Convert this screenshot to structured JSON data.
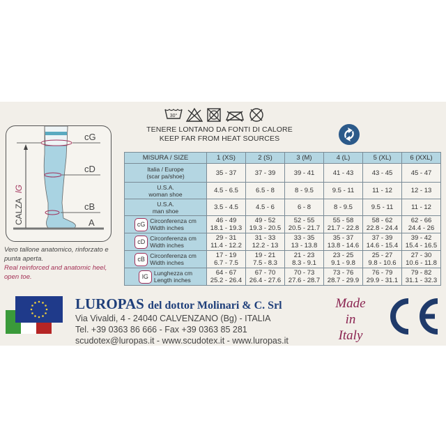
{
  "care_icons": [
    "wash-30-icon",
    "no-bleach-icon",
    "no-tumble-dry-icon",
    "no-iron-icon",
    "no-dry-clean-icon"
  ],
  "wash_temp": "30°",
  "heat_warning": {
    "it": "TENERE LONTANO DA FONTI DI CALORE",
    "en": "KEEP FAR FROM HEAT SOURCES"
  },
  "diagram": {
    "labels": [
      "cG",
      "cD",
      "cB",
      "A"
    ],
    "axis_label": "CALZA",
    "axis_symbol": "lG"
  },
  "note": {
    "it": "Vero tallone anatomico, rinforzato e punta aperta.",
    "en": "Real reinforced and anatomic heel, open toe."
  },
  "table": {
    "header": [
      "MISURA / SIZE",
      "1 (XS)",
      "2 (S)",
      "3 (M)",
      "4 (L)",
      "5 (XL)",
      "6 (XXL)"
    ],
    "rows": [
      {
        "label1": "Italia / Europe",
        "label2": "(scar pa/shoe)",
        "values": [
          "35 - 37",
          "37 - 39",
          "39 - 41",
          "41 - 43",
          "43 - 45",
          "45 - 47"
        ]
      },
      {
        "label1": "U.S.A.",
        "label2": "woman shoe",
        "values": [
          "4.5 - 6.5",
          "6.5 - 8",
          "8 - 9.5",
          "9.5 - 11",
          "11 - 12",
          "12 - 13"
        ]
      },
      {
        "label1": "U.S.A.",
        "label2": "man shoe",
        "values": [
          "3.5 - 4.5",
          "4.5 - 6",
          "6 - 8",
          "8 - 9.5",
          "9.5 - 11",
          "11 - 12"
        ]
      }
    ],
    "measure_rows": [
      {
        "icon": "cG",
        "label1": "Circonferenza cm",
        "label2": "Width inches",
        "cm": [
          "46 - 49",
          "49 - 52",
          "52 - 55",
          "55 - 58",
          "58 - 62",
          "62 - 66"
        ],
        "in": [
          "18.1 - 19.3",
          "19.3 - 20.5",
          "20.5 - 21.7",
          "21.7 - 22.8",
          "22.8 - 24.4",
          "24.4 - 26"
        ]
      },
      {
        "icon": "cD",
        "label1": "Circonferenza cm",
        "label2": "Width inches",
        "cm": [
          "29 - 31",
          "31 - 33",
          "33 - 35",
          "35 - 37",
          "37 - 39",
          "39 - 42"
        ],
        "in": [
          "11.4 - 12.2",
          "12.2 - 13",
          "13 - 13.8",
          "13.8 - 14.6",
          "14.6 - 15.4",
          "15.4 - 16.5"
        ]
      },
      {
        "icon": "cB",
        "label1": "Circonferenza cm",
        "label2": "Width inches",
        "cm": [
          "17 - 19",
          "19 - 21",
          "21 - 23",
          "23 - 25",
          "25 - 27",
          "27 - 30"
        ],
        "in": [
          "6.7 - 7.5",
          "7.5 - 8.3",
          "8.3 - 9.1",
          "9.1 - 9.8",
          "9.8 - 10.6",
          "10.6 - 11.8"
        ]
      },
      {
        "icon": "lG",
        "label1": "Lunghezza cm",
        "label2": "Length inches",
        "cm": [
          "64 - 67",
          "67 - 70",
          "70 - 73",
          "73 - 76",
          "76 - 79",
          "79 - 82"
        ],
        "in": [
          "25.2 - 26.4",
          "26.4 - 27.6",
          "27.6 - 28.7",
          "28.7 - 29.9",
          "29.9 - 31.1",
          "31.1 - 32.3"
        ]
      }
    ]
  },
  "company": {
    "name": "LUROPAS",
    "name_rest": "del dottor Molinari & C. Srl",
    "address": "Via Vivaldi, 4 - 24040 CALVENZANO (Bg) - ITALIA",
    "phone": "Tel. +39 0363 86 666 - Fax +39 0363 85 281",
    "web": "scudotex@luropas.it - www.scudotex.it - www.luropas.it"
  },
  "made_in": [
    "Made",
    "in",
    "Italy"
  ],
  "ce_mark": "CE",
  "colors": {
    "table_header": "#b4d6e2",
    "brand": "#1f3f7a",
    "made_in": "#8a2350",
    "stocking": "#8cc3d6"
  }
}
